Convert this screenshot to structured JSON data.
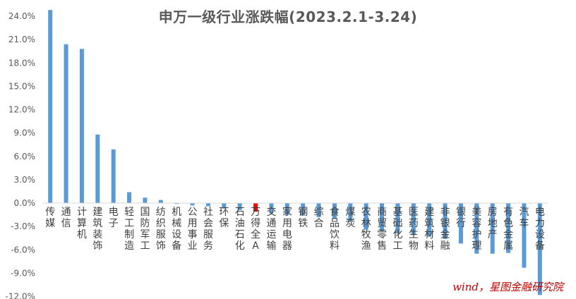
{
  "chart_data": {
    "type": "bar",
    "title": "申万一级行业涨跌幅(2023.2.1-3.24)",
    "xlabel": "",
    "ylabel": "",
    "ylim": [
      -12.0,
      25.0
    ],
    "yticks": [
      "24.0%",
      "21.0%",
      "18.0%",
      "15.0%",
      "12.0%",
      "9.0%",
      "6.0%",
      "3.0%",
      "0.0%",
      "-3.0%",
      "-6.0%",
      "-9.0%",
      "-12.0%"
    ],
    "ytick_values": [
      24,
      21,
      18,
      15,
      12,
      9,
      6,
      3,
      0,
      -3,
      -6,
      -9,
      -12
    ],
    "grid": false,
    "legend": "none",
    "categories": [
      "传媒",
      "通信",
      "计算机",
      "建筑装饰",
      "电子",
      "轻工制造",
      "国防军工",
      "纺织服饰",
      "机械设备",
      "公用事业",
      "社会服务",
      "环保",
      "石油石化",
      "万得全A",
      "交通运输",
      "家用电器",
      "钢铁",
      "综合",
      "食品饮料",
      "煤炭",
      "农林牧渔",
      "商贸零售",
      "基础化工",
      "医药生物",
      "建筑材料",
      "非银金融",
      "银行",
      "美容护理",
      "房地产",
      "有色金属",
      "汽车",
      "电力设备"
    ],
    "values": [
      24.8,
      20.4,
      19.8,
      8.8,
      6.9,
      1.4,
      0.7,
      0.4,
      -0.1,
      -0.3,
      -0.4,
      -0.7,
      -0.9,
      -1.1,
      -1.3,
      -1.5,
      -1.6,
      -1.8,
      -2.0,
      -2.3,
      -3.4,
      -3.6,
      -3.9,
      -4.1,
      -4.3,
      -4.6,
      -5.2,
      -6.5,
      -6.5,
      -6.4,
      -8.3,
      -11.8
    ],
    "highlight_category": "万得全A",
    "colors": {
      "bar": "#5b9bd5",
      "highlight": "#ff0000",
      "axis": "#d9d9d9",
      "tick_text": "#595959",
      "category_text": "#404040"
    }
  },
  "source_note": "wind，星图金融研究院"
}
